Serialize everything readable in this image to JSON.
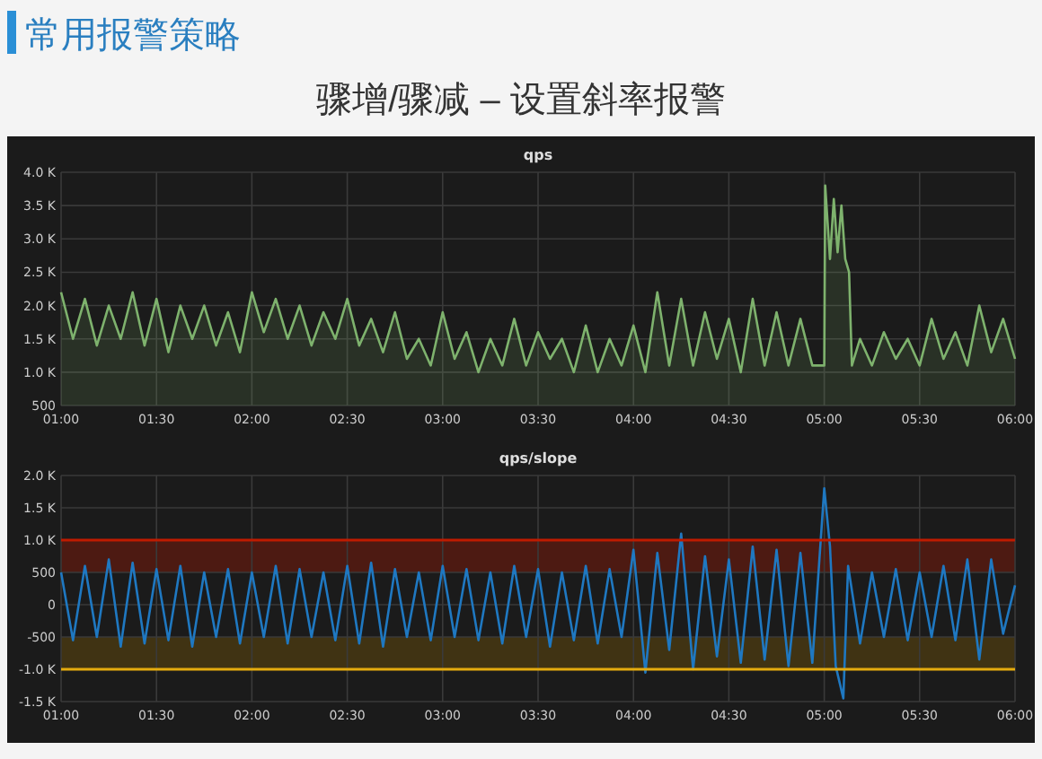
{
  "chart_data": [
    {
      "type": "other",
      "title": "常用报警策略",
      "subtitle": "骤增/骤减  –  设置斜率报警"
    },
    {
      "type": "area",
      "title": "qps",
      "grid": true,
      "xlim": [
        1,
        6
      ],
      "ylim": [
        500,
        4000
      ],
      "xticks": [
        {
          "value": 1,
          "label": "01:00"
        },
        {
          "value": 1.5,
          "label": "01:30"
        },
        {
          "value": 2,
          "label": "02:00"
        },
        {
          "value": 2.5,
          "label": "02:30"
        },
        {
          "value": 3,
          "label": "03:00"
        },
        {
          "value": 3.5,
          "label": "03:30"
        },
        {
          "value": 4,
          "label": "04:00"
        },
        {
          "value": 4.5,
          "label": "04:30"
        },
        {
          "value": 5,
          "label": "05:00"
        },
        {
          "value": 5.5,
          "label": "05:30"
        },
        {
          "value": 6,
          "label": "06:00"
        }
      ],
      "yticks": [
        500,
        {
          "value": 1000,
          "label": "1.0 K"
        },
        {
          "value": 1500,
          "label": "1.5 K"
        },
        {
          "value": 2000,
          "label": "2.0 K"
        },
        {
          "value": 2500,
          "label": "2.5 K"
        },
        {
          "value": 3000,
          "label": "3.0 K"
        },
        {
          "value": 3500,
          "label": "3.5 K"
        },
        {
          "value": 4000,
          "label": "4.0 K"
        }
      ],
      "series": [
        {
          "color": "#7eb26d",
          "x": [
            1,
            1.0625,
            1.125,
            1.1875,
            1.25,
            1.3125,
            1.375,
            1.4375,
            1.5,
            1.5625,
            1.625,
            1.6875,
            1.75,
            1.8125,
            1.875,
            1.9375,
            2,
            2.0625,
            2.125,
            2.1875,
            2.25,
            2.3125,
            2.375,
            2.4375,
            2.5,
            2.5625,
            2.625,
            2.6875,
            2.75,
            2.8125,
            2.875,
            2.9375,
            3,
            3.0625,
            3.125,
            3.1875,
            3.25,
            3.3125,
            3.375,
            3.4375,
            3.5,
            3.5625,
            3.625,
            3.6875,
            3.75,
            3.8125,
            3.875,
            3.9375,
            4,
            4.0625,
            4.125,
            4.1875,
            4.25,
            4.3125,
            4.375,
            4.4375,
            4.5,
            4.5625,
            4.625,
            4.6875,
            4.75,
            4.8125,
            4.875,
            4.9375,
            5,
            5.005,
            5.03,
            5.05,
            5.07,
            5.09,
            5.11,
            5.13,
            5.145,
            5.1875,
            5.25,
            5.3125,
            5.375,
            5.4375,
            5.5,
            5.5625,
            5.625,
            5.6875,
            5.75,
            5.8125,
            5.875,
            5.9375,
            6
          ],
          "values": [
            2200,
            1500,
            2100,
            1400,
            2000,
            1500,
            2200,
            1400,
            2100,
            1300,
            2000,
            1500,
            2000,
            1400,
            1900,
            1300,
            2200,
            1600,
            2100,
            1500,
            2000,
            1400,
            1900,
            1500,
            2100,
            1400,
            1800,
            1300,
            1900,
            1200,
            1500,
            1100,
            1900,
            1200,
            1600,
            1000,
            1500,
            1100,
            1800,
            1100,
            1600,
            1200,
            1500,
            1000,
            1700,
            1000,
            1500,
            1100,
            1700,
            1000,
            2200,
            1100,
            2100,
            1100,
            1900,
            1200,
            1800,
            1000,
            2100,
            1100,
            1900,
            1100,
            1800,
            1100,
            1100,
            3800,
            2700,
            3600,
            2800,
            3500,
            2700,
            2500,
            1100,
            1500,
            1100,
            1600,
            1200,
            1500,
            1100,
            1800,
            1200,
            1600,
            1100,
            2000,
            1300,
            1800,
            1200
          ]
        }
      ]
    },
    {
      "type": "line",
      "title": "qps/slope",
      "grid": true,
      "xlim": [
        1,
        6
      ],
      "ylim": [
        -1500,
        2000
      ],
      "xticks": [
        {
          "value": 1,
          "label": "01:00"
        },
        {
          "value": 1.5,
          "label": "01:30"
        },
        {
          "value": 2,
          "label": "02:00"
        },
        {
          "value": 2.5,
          "label": "02:30"
        },
        {
          "value": 3,
          "label": "03:00"
        },
        {
          "value": 3.5,
          "label": "03:30"
        },
        {
          "value": 4,
          "label": "04:00"
        },
        {
          "value": 4.5,
          "label": "04:30"
        },
        {
          "value": 5,
          "label": "05:00"
        },
        {
          "value": 5.5,
          "label": "05:30"
        },
        {
          "value": 6,
          "label": "06:00"
        }
      ],
      "yticks": [
        {
          "value": -1500,
          "label": "-1.5 K"
        },
        {
          "value": -1000,
          "label": "-1.0 K"
        },
        -500,
        0,
        500,
        {
          "value": 1000,
          "label": "1.0 K"
        },
        {
          "value": 1500,
          "label": "1.5 K"
        },
        {
          "value": 2000,
          "label": "2.0 K"
        }
      ],
      "ref_lines": [
        {
          "axis": "y",
          "value": 1000,
          "color": "#bf1b00"
        },
        {
          "axis": "y",
          "value": -1000,
          "color": "#e5ac0e"
        }
      ],
      "bands": [
        {
          "axis": "y",
          "from": 500,
          "to": 1000,
          "color": "#5a1a10"
        },
        {
          "axis": "y",
          "from": -1000,
          "to": -500,
          "color": "#4a3a12"
        }
      ],
      "series": [
        {
          "color": "#1f78c1",
          "x": [
            1,
            1.0625,
            1.125,
            1.1875,
            1.25,
            1.3125,
            1.375,
            1.4375,
            1.5,
            1.5625,
            1.625,
            1.6875,
            1.75,
            1.8125,
            1.875,
            1.9375,
            2,
            2.0625,
            2.125,
            2.1875,
            2.25,
            2.3125,
            2.375,
            2.4375,
            2.5,
            2.5625,
            2.625,
            2.6875,
            2.75,
            2.8125,
            2.875,
            2.9375,
            3,
            3.0625,
            3.125,
            3.1875,
            3.25,
            3.3125,
            3.375,
            3.4375,
            3.5,
            3.5625,
            3.625,
            3.6875,
            3.75,
            3.8125,
            3.875,
            3.9375,
            4,
            4.0625,
            4.125,
            4.1875,
            4.25,
            4.3125,
            4.375,
            4.4375,
            4.5,
            4.5625,
            4.625,
            4.6875,
            4.75,
            4.8125,
            4.875,
            4.9375,
            5,
            5.03,
            5.06,
            5.1,
            5.125,
            5.1875,
            5.25,
            5.3125,
            5.375,
            5.4375,
            5.5,
            5.5625,
            5.625,
            5.6875,
            5.75,
            5.8125,
            5.875,
            5.9375,
            6
          ],
          "values": [
            500,
            -550,
            600,
            -500,
            700,
            -650,
            650,
            -600,
            550,
            -550,
            600,
            -650,
            500,
            -500,
            550,
            -600,
            500,
            -500,
            600,
            -600,
            550,
            -500,
            500,
            -550,
            600,
            -600,
            650,
            -650,
            550,
            -500,
            500,
            -550,
            600,
            -500,
            550,
            -550,
            500,
            -600,
            600,
            -500,
            550,
            -650,
            500,
            -550,
            600,
            -600,
            550,
            -500,
            850,
            -1050,
            800,
            -700,
            1100,
            -1000,
            750,
            -800,
            700,
            -900,
            900,
            -850,
            850,
            -950,
            800,
            -900,
            1800,
            900,
            -950,
            -1450,
            600,
            -600,
            500,
            -500,
            550,
            -550,
            500,
            -500,
            600,
            -550,
            700,
            -850,
            700,
            -450,
            300
          ]
        }
      ]
    }
  ]
}
